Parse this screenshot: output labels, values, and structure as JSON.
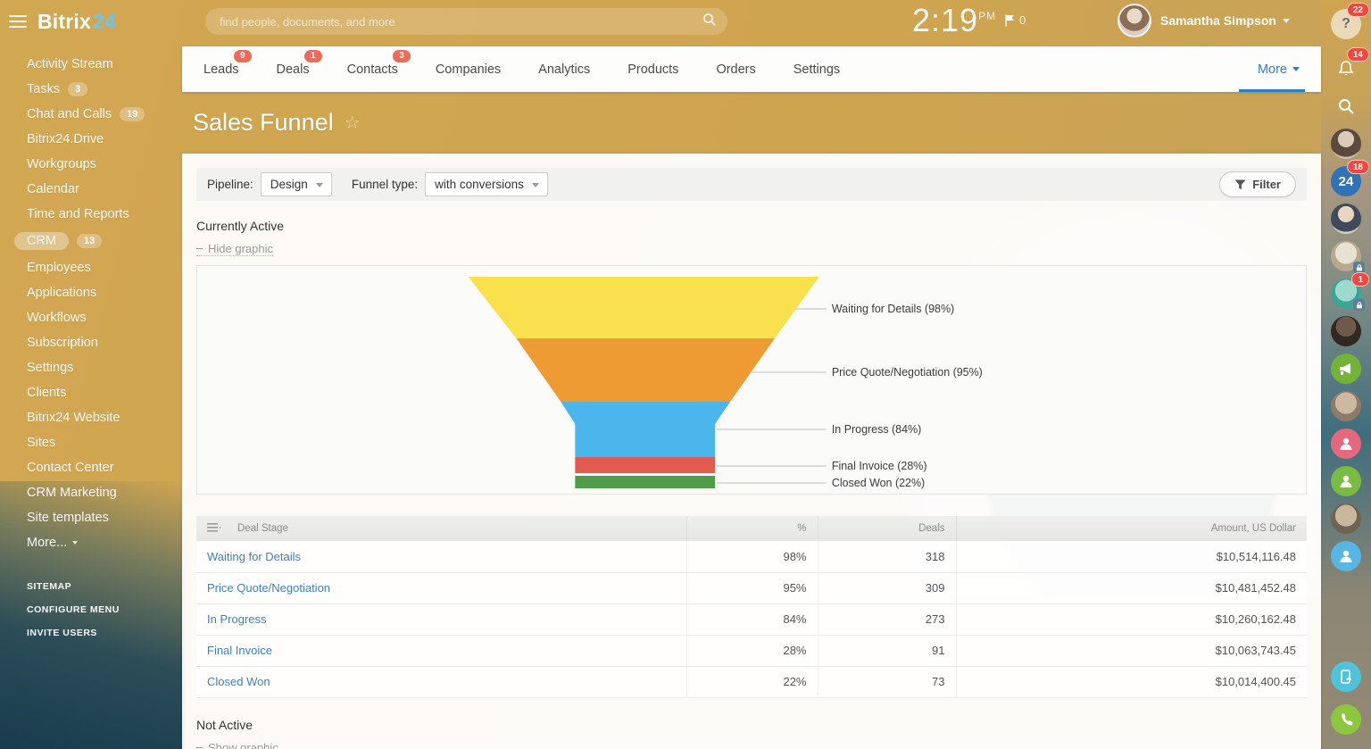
{
  "topbar": {
    "brand": "Bitrix",
    "brand_suffix": "24",
    "search_placeholder": "find people, documents, and more",
    "time": "2:19",
    "time_period": "PM",
    "flag_count": "0",
    "user_name": "Samantha Simpson"
  },
  "sidebar": {
    "items": [
      {
        "label": "Activity Stream"
      },
      {
        "label": "Tasks",
        "badge": "3"
      },
      {
        "label": "Chat and Calls",
        "badge": "19"
      },
      {
        "label": "Bitrix24.Drive"
      },
      {
        "label": "Workgroups"
      },
      {
        "label": "Calendar"
      },
      {
        "label": "Time and Reports"
      },
      {
        "label": "CRM",
        "badge": "13",
        "active": true
      },
      {
        "label": "Employees"
      },
      {
        "label": "Applications"
      },
      {
        "label": "Workflows"
      },
      {
        "label": "Subscription"
      },
      {
        "label": "Settings"
      },
      {
        "label": "Clients"
      },
      {
        "label": "Bitrix24 Website"
      },
      {
        "label": "Sites"
      },
      {
        "label": "Contact Center"
      },
      {
        "label": "CRM Marketing"
      },
      {
        "label": "Site templates"
      },
      {
        "label": "More...",
        "caret": true
      }
    ],
    "footer_links": [
      "SITEMAP",
      "CONFIGURE MENU",
      "INVITE USERS"
    ]
  },
  "nav": {
    "tabs": [
      {
        "label": "Leads",
        "badge": "9"
      },
      {
        "label": "Deals",
        "badge": "1"
      },
      {
        "label": "Contacts",
        "badge": "3"
      },
      {
        "label": "Companies"
      },
      {
        "label": "Analytics"
      },
      {
        "label": "Products"
      },
      {
        "label": "Orders"
      },
      {
        "label": "Settings"
      }
    ],
    "more_label": "More"
  },
  "page": {
    "title": "Sales Funnel"
  },
  "filters": {
    "pipeline_label": "Pipeline:",
    "pipeline_value": "Design",
    "funnel_type_label": "Funnel type:",
    "funnel_type_value": "with conversions",
    "filter_button": "Filter"
  },
  "sections": {
    "active_title": "Currently Active",
    "hide_graphic_label": "Hide graphic",
    "inactive_title": "Not Active",
    "show_graphic_label": "Show graphic"
  },
  "chart_data": {
    "type": "funnel",
    "title": "Currently Active sales funnel",
    "stages": [
      {
        "label": "Waiting for Details",
        "percent": 98,
        "deals": 318,
        "amount": "$10,514,116.48",
        "color": "#f8e14c"
      },
      {
        "label": "Price Quote/Negotiation",
        "percent": 95,
        "deals": 309,
        "amount": "$10,481,452.48",
        "color": "#ef9b33"
      },
      {
        "label": "In Progress",
        "percent": 84,
        "deals": 273,
        "amount": "$10,260,162.48",
        "color": "#4ab6ec"
      },
      {
        "label": "Final Invoice",
        "percent": 28,
        "deals": 91,
        "amount": "$10,063,743.45",
        "color": "#e25b4e"
      },
      {
        "label": "Closed Won",
        "percent": 22,
        "deals": 73,
        "amount": "$10,014,400.45",
        "color": "#4f9d48"
      }
    ]
  },
  "table": {
    "headers": [
      "Deal Stage",
      "%",
      "Deals",
      "Amount, US Dollar"
    ]
  },
  "right_rail": {
    "items": [
      {
        "icon": "help-icon",
        "badge": "22",
        "bg": "rgba(255,255,255,0.6)"
      },
      {
        "icon": "bell-icon",
        "badge": "14",
        "bg": "transparent"
      },
      {
        "icon": "search-icon",
        "bg": "transparent"
      },
      {
        "icon": "avatar",
        "variant": "a"
      },
      {
        "icon": "bitrix24-badge",
        "label": "24",
        "badge": "18",
        "bg": "#2f73b6"
      },
      {
        "icon": "avatar",
        "variant": "b"
      },
      {
        "icon": "avatar",
        "variant": "c",
        "lock": true
      },
      {
        "icon": "avatar",
        "variant": "d",
        "badge": "1",
        "lock": true
      },
      {
        "icon": "avatar",
        "variant": "e"
      },
      {
        "icon": "megaphone-icon",
        "bg": "#72b338"
      },
      {
        "icon": "avatar",
        "variant": "f"
      },
      {
        "icon": "person-icon",
        "bg": "#e4697f"
      },
      {
        "icon": "person-icon",
        "bg": "#79bb43"
      },
      {
        "icon": "avatar",
        "variant": "g"
      },
      {
        "icon": "person-icon",
        "bg": "#58b6e4"
      }
    ],
    "bottom_items": [
      {
        "icon": "device-icon",
        "bg": "#4fc3d9"
      },
      {
        "icon": "phone-icon",
        "bg": "#8dc63f"
      }
    ]
  },
  "colors": {
    "accent_blue": "#2e7ec6",
    "badge_red": "#ed6a58",
    "link_blue": "#3e80bd",
    "topbar_suffix_blue": "#67c6f1"
  }
}
